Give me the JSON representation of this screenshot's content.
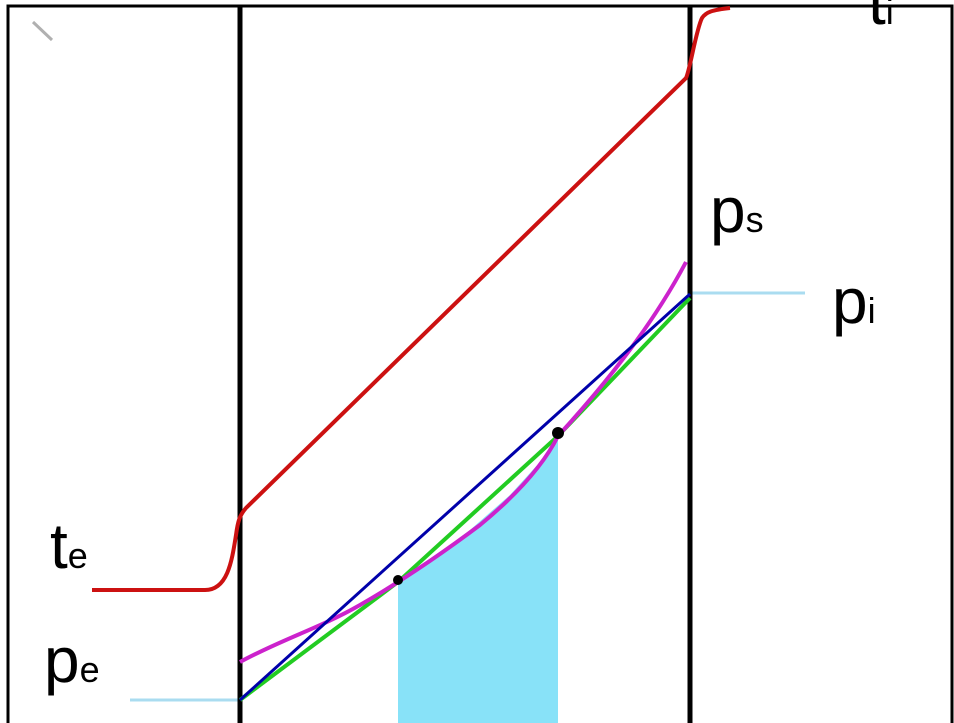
{
  "labels": {
    "t_e": {
      "main": "t",
      "sub": "e"
    },
    "p_e": {
      "main": "p",
      "sub": "e"
    },
    "p_s": {
      "main": "p",
      "sub": "s"
    },
    "p_i": {
      "main": "p",
      "sub": "i"
    },
    "t_i": {
      "main": "t",
      "sub": "i"
    }
  },
  "colors": {
    "temperature_curve": "#cc1111",
    "saturation_pressure_curve": "#cc22cc",
    "vapour_pressure_line": "#0000aa",
    "tangent_line": "#22cc22",
    "condensation_zone_fill": "#88e2f8",
    "pressure_marker_lines": "#aadcf0",
    "wall_boundaries": "#000000"
  }
}
